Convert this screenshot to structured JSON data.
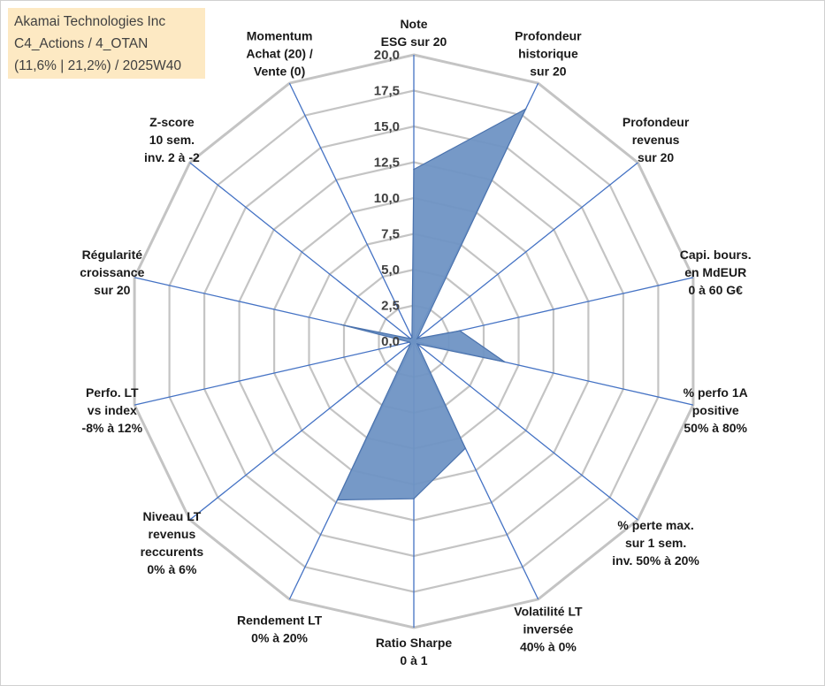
{
  "title_box": {
    "line1": "Akamai Technologies Inc",
    "line2": "C4_Actions / 4_OTAN",
    "line3": "(11,6% | 21,2%) / 2025W40"
  },
  "colors": {
    "fill": "#6f93c4",
    "stroke": "#4a72ad",
    "grid": "#c4c4c4",
    "spoke": "#4472c4"
  },
  "chart_data": {
    "type": "radar",
    "range": [
      0,
      20
    ],
    "ticks": [
      "0,0",
      "2,5",
      "5,0",
      "7,5",
      "10,0",
      "12,5",
      "15,0",
      "17,5",
      "20,0"
    ],
    "categories": [
      [
        "Note",
        "ESG sur 20"
      ],
      [
        "Profondeur",
        "historique",
        "sur 20"
      ],
      [
        "Profondeur",
        "revenus",
        "sur 20"
      ],
      [
        "Capi. bours.",
        "en MdEUR",
        "0 à 60 G€"
      ],
      [
        "% perfo 1A",
        "positive",
        "50% à 80%"
      ],
      [
        "% perte max.",
        "sur 1 sem.",
        "inv. 50% à 20%"
      ],
      [
        "Volatilité LT",
        "inversée",
        "40% à 0%"
      ],
      [
        "Ratio Sharpe",
        "0 à 1"
      ],
      [
        "Rendement LT",
        "0% à 20%"
      ],
      [
        "Niveau LT",
        "revenus",
        "reccurents",
        "0% à 6%"
      ],
      [
        "Perfo. LT",
        "vs index",
        "-8% à 12%"
      ],
      [
        "Régularité",
        "croissance",
        "sur 20"
      ],
      [
        "Z-score",
        "10 sem.",
        "inv. 2 à -2"
      ],
      [
        "Momentum",
        "Achat (20) /",
        "Vente (0)"
      ]
    ],
    "values": [
      12.0,
      18.0,
      0.3,
      3.3,
      6.5,
      0.3,
      8.3,
      11.0,
      12.3,
      0.3,
      0.3,
      5.2,
      0.3,
      0.3
    ],
    "grid": true,
    "legend": "none"
  }
}
